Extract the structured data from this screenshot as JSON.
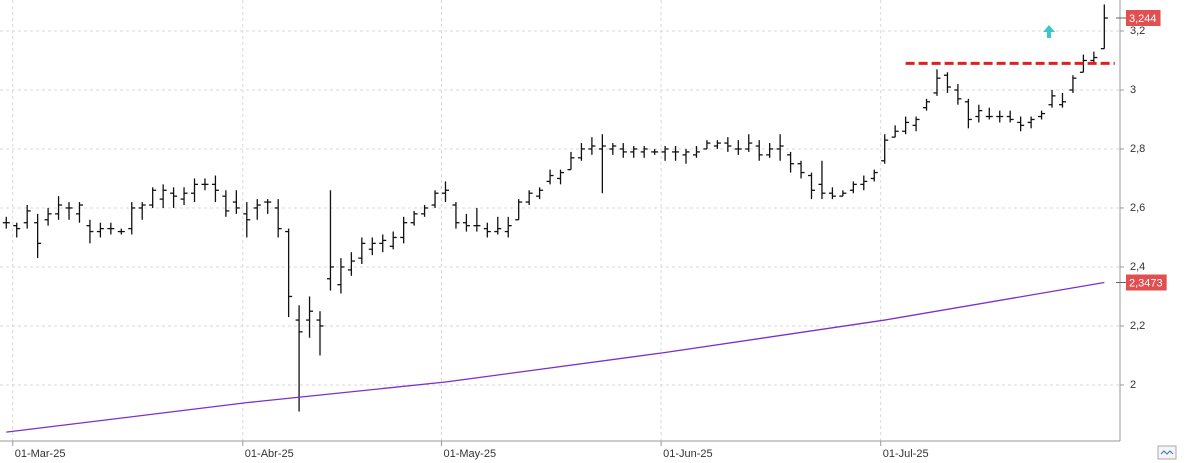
{
  "chart_data": {
    "type": "ohlc",
    "categories": [
      null,
      "01-Mar-25",
      null,
      null,
      null,
      null,
      null,
      null,
      null,
      null,
      null,
      null,
      null,
      null,
      null,
      null,
      null,
      null,
      null,
      null,
      null,
      null,
      null,
      "01-Abr-25",
      null,
      null,
      null,
      null,
      null,
      null,
      null,
      null,
      null,
      null,
      null,
      null,
      null,
      null,
      null,
      null,
      null,
      null,
      "01-May-25",
      null,
      null,
      null,
      null,
      null,
      null,
      null,
      null,
      null,
      null,
      null,
      null,
      null,
      null,
      null,
      null,
      null,
      null,
      null,
      null,
      "01-Jun-25",
      null,
      null,
      null,
      null,
      null,
      null,
      null,
      null,
      null,
      null,
      null,
      null,
      null,
      null,
      null,
      null,
      null,
      null,
      null,
      null,
      "01-Jul-25",
      null,
      null,
      null,
      null,
      null,
      null,
      null,
      null,
      null,
      null,
      null,
      null,
      null,
      null,
      null,
      null,
      null,
      null,
      null,
      null,
      null
    ],
    "series": [
      {
        "color": "#111111",
        "open": [
          2.55,
          2.54,
          2.55,
          2.55,
          2.56,
          2.58,
          2.6,
          2.58,
          2.54,
          2.52,
          2.53,
          2.52,
          2.53,
          2.6,
          2.61,
          2.63,
          2.65,
          2.63,
          2.65,
          2.68,
          2.68,
          2.64,
          2.62,
          2.58,
          2.6,
          2.62,
          2.6,
          2.52,
          2.22,
          2.22,
          2.22,
          2.36,
          2.34,
          2.39,
          2.43,
          2.46,
          2.48,
          2.47,
          2.5,
          2.55,
          2.58,
          2.61,
          2.65,
          2.61,
          2.55,
          2.54,
          2.53,
          2.52,
          2.52,
          2.56,
          2.62,
          2.64,
          2.69,
          2.7,
          2.73,
          2.77,
          2.8,
          2.8,
          2.8,
          2.8,
          2.79,
          2.79,
          2.79,
          2.79,
          2.79,
          2.78,
          2.78,
          2.8,
          2.81,
          2.82,
          2.8,
          2.8,
          2.81,
          2.78,
          2.8,
          2.78,
          2.75,
          2.71,
          2.68,
          2.65,
          2.64,
          2.66,
          2.68,
          2.7,
          2.76,
          2.84,
          2.86,
          2.88,
          2.94,
          2.99,
          3.05,
          3.0,
          2.96,
          2.91,
          2.91,
          2.91,
          2.91,
          2.89,
          2.89,
          2.91,
          2.95,
          2.95,
          3.0,
          3.06,
          3.1,
          3.14
        ],
        "high": [
          2.57,
          2.55,
          2.61,
          2.58,
          2.6,
          2.64,
          2.62,
          2.62,
          2.56,
          2.55,
          2.55,
          2.53,
          2.62,
          2.62,
          2.67,
          2.68,
          2.67,
          2.67,
          2.7,
          2.7,
          2.71,
          2.66,
          2.66,
          2.62,
          2.63,
          2.63,
          2.63,
          2.53,
          2.27,
          2.3,
          2.25,
          2.66,
          2.43,
          2.45,
          2.5,
          2.5,
          2.51,
          2.52,
          2.57,
          2.59,
          2.61,
          2.66,
          2.69,
          2.62,
          2.58,
          2.6,
          2.55,
          2.57,
          2.57,
          2.63,
          2.66,
          2.67,
          2.73,
          2.73,
          2.79,
          2.82,
          2.84,
          2.85,
          2.82,
          2.82,
          2.81,
          2.81,
          2.8,
          2.81,
          2.81,
          2.8,
          2.81,
          2.83,
          2.83,
          2.84,
          2.83,
          2.85,
          2.83,
          2.82,
          2.85,
          2.79,
          2.76,
          2.72,
          2.76,
          2.67,
          2.66,
          2.69,
          2.71,
          2.73,
          2.85,
          2.88,
          2.91,
          2.91,
          2.97,
          3.07,
          3.06,
          3.02,
          2.97,
          2.95,
          2.94,
          2.93,
          2.93,
          2.91,
          2.91,
          2.93,
          3.0,
          2.99,
          3.05,
          3.12,
          3.13,
          3.29
        ],
        "low": [
          2.53,
          2.5,
          2.53,
          2.43,
          2.54,
          2.56,
          2.56,
          2.55,
          2.48,
          2.5,
          2.51,
          2.51,
          2.51,
          2.56,
          2.6,
          2.6,
          2.6,
          2.61,
          2.62,
          2.66,
          2.62,
          2.57,
          2.58,
          2.5,
          2.56,
          2.58,
          2.5,
          2.23,
          1.91,
          2.16,
          2.1,
          2.32,
          2.31,
          2.37,
          2.41,
          2.44,
          2.45,
          2.46,
          2.48,
          2.54,
          2.57,
          2.6,
          2.62,
          2.53,
          2.52,
          2.52,
          2.5,
          2.51,
          2.5,
          2.56,
          2.61,
          2.63,
          2.68,
          2.68,
          2.73,
          2.76,
          2.78,
          2.65,
          2.78,
          2.77,
          2.77,
          2.77,
          2.78,
          2.76,
          2.76,
          2.75,
          2.77,
          2.8,
          2.8,
          2.79,
          2.78,
          2.79,
          2.76,
          2.77,
          2.76,
          2.72,
          2.7,
          2.63,
          2.63,
          2.63,
          2.64,
          2.65,
          2.66,
          2.69,
          2.75,
          2.84,
          2.85,
          2.86,
          2.93,
          2.98,
          2.99,
          2.95,
          2.87,
          2.89,
          2.9,
          2.89,
          2.89,
          2.86,
          2.87,
          2.9,
          2.94,
          2.94,
          2.99,
          3.06,
          3.09,
          3.14
        ],
        "close": [
          2.55,
          2.53,
          2.59,
          2.48,
          2.58,
          2.61,
          2.6,
          2.61,
          2.52,
          2.53,
          2.53,
          2.52,
          2.6,
          2.61,
          2.66,
          2.66,
          2.64,
          2.65,
          2.68,
          2.68,
          2.66,
          2.59,
          2.6,
          2.56,
          2.61,
          2.62,
          2.53,
          2.3,
          2.18,
          2.25,
          2.2,
          2.4,
          2.4,
          2.42,
          2.48,
          2.48,
          2.49,
          2.5,
          2.55,
          2.58,
          2.6,
          2.65,
          2.66,
          2.55,
          2.54,
          2.54,
          2.52,
          2.53,
          2.54,
          2.62,
          2.65,
          2.66,
          2.71,
          2.72,
          2.77,
          2.8,
          2.81,
          2.81,
          2.81,
          2.79,
          2.8,
          2.8,
          2.79,
          2.8,
          2.79,
          2.79,
          2.79,
          2.82,
          2.82,
          2.81,
          2.8,
          2.82,
          2.78,
          2.8,
          2.81,
          2.75,
          2.72,
          2.66,
          2.65,
          2.64,
          2.65,
          2.68,
          2.69,
          2.72,
          2.83,
          2.86,
          2.89,
          2.9,
          2.96,
          3.04,
          3.01,
          2.97,
          2.9,
          2.93,
          2.91,
          2.91,
          2.9,
          2.88,
          2.9,
          2.92,
          2.98,
          2.96,
          3.04,
          3.1,
          3.11,
          3.244
        ],
        "value_labels": [
          null,
          null,
          null,
          null,
          null,
          null,
          null,
          null,
          null,
          null,
          null,
          null,
          null,
          null,
          null,
          null,
          null,
          null,
          null,
          null,
          null,
          null,
          null,
          null,
          null,
          null,
          null,
          null,
          null,
          null,
          null,
          null,
          null,
          null,
          null,
          null,
          null,
          null,
          null,
          null,
          null,
          null,
          null,
          null,
          null,
          null,
          null,
          null,
          null,
          null,
          null,
          null,
          null,
          null,
          null,
          null,
          null,
          null,
          null,
          null,
          null,
          null,
          null,
          null,
          null,
          null,
          null,
          null,
          null,
          null,
          null,
          null,
          null,
          null,
          null,
          null,
          null,
          null,
          null,
          null,
          null,
          null,
          null,
          null,
          null,
          null,
          null,
          null,
          null,
          null,
          null,
          null,
          null,
          null,
          null,
          null,
          null,
          null,
          null,
          null,
          null,
          null,
          null,
          null,
          null,
          "3,244"
        ],
        "label_color": "#e05050"
      },
      {
        "type": "line",
        "color": "#7b2fd0",
        "x": [
          0,
          23,
          42,
          63,
          84,
          105
        ],
        "values": [
          1.84,
          1.94,
          2.01,
          2.11,
          2.22,
          2.3473
        ],
        "value_labels": [
          null,
          null,
          null,
          null,
          null,
          "2,3473"
        ],
        "label_color": "#e05050"
      }
    ],
    "resistance": {
      "value": 3.09,
      "x": [
        86,
        106
      ],
      "color": "#e02020"
    },
    "xlim": [
      -0.6,
      106.5
    ],
    "ylim": [
      1.81,
      3.305
    ],
    "yticks": [
      2,
      {
        "value": 2.2,
        "label": "2,2"
      },
      {
        "value": 2.4,
        "label": "2,4"
      },
      {
        "value": 2.6,
        "label": "2,6"
      },
      {
        "value": 2.8,
        "label": "2,8"
      },
      3,
      {
        "value": 3.2,
        "label": "3,2"
      }
    ],
    "grid": true
  }
}
